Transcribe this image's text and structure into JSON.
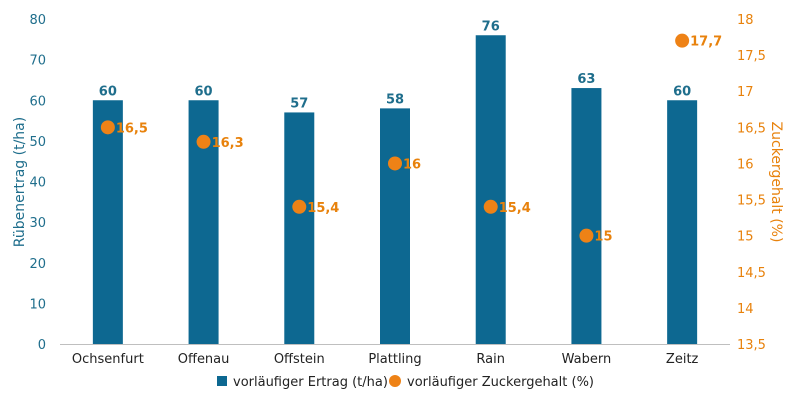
{
  "chart_data": {
    "type": "bar",
    "categories": [
      "Ochsenfurt",
      "Offenau",
      "Offstein",
      "Plattling",
      "Rain",
      "Wabern",
      "Zeitz"
    ],
    "series": [
      {
        "name": "vorläufiger Ertrag (t/ha)",
        "type": "bar",
        "axis": "left",
        "values": [
          60,
          60,
          57,
          58,
          76,
          63,
          60
        ],
        "labels": [
          "60",
          "60",
          "57",
          "58",
          "76",
          "63",
          "60"
        ],
        "color": "#0d6891"
      },
      {
        "name": "vorläufiger Zuckergehalt (%)",
        "type": "scatter",
        "axis": "right",
        "values": [
          16.5,
          16.3,
          15.4,
          16.0,
          15.4,
          15.0,
          17.7
        ],
        "labels": [
          "16,5",
          "16,3",
          "15,4",
          "16",
          "15,4",
          "15",
          "17,7"
        ],
        "color": "#ee8216"
      }
    ],
    "ylabel_left": "Rübenertrag (t/ha)",
    "ylabel_right": "Zuckergehalt (%)",
    "ylim_left": [
      0,
      80
    ],
    "yticks_left": [
      "0",
      "10",
      "20",
      "30",
      "40",
      "50",
      "60",
      "70",
      "80"
    ],
    "ylim_right": [
      13.5,
      18
    ],
    "yticks_right": [
      "13,5",
      "14",
      "14,5",
      "15",
      "15,5",
      "16",
      "16,5",
      "17",
      "17,5",
      "18"
    ],
    "grid": false,
    "legend": "bottom-center"
  }
}
